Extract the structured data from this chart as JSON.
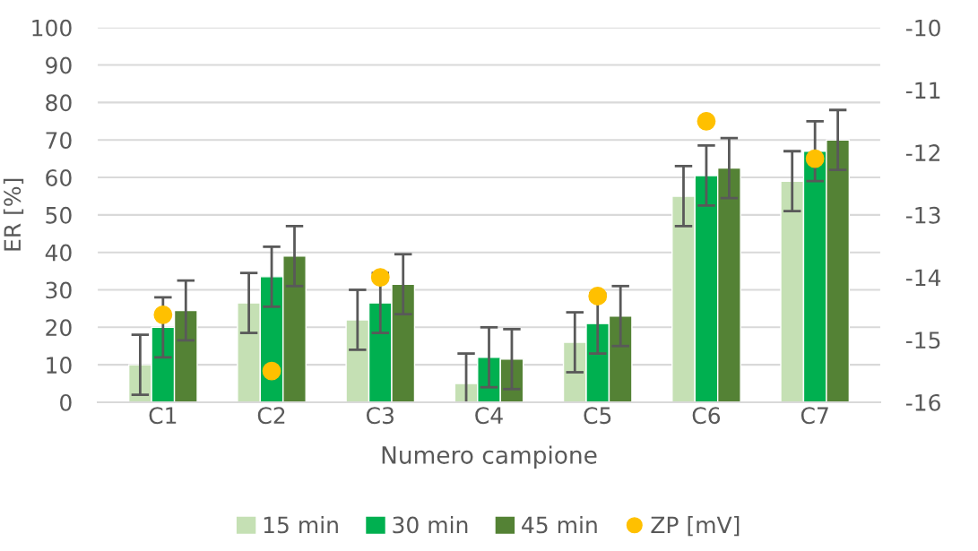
{
  "chart_data": {
    "type": "bar",
    "xlabel": "Numero campione",
    "ylabel": "ER [%]",
    "categories": [
      "C1",
      "C2",
      "C3",
      "C4",
      "C5",
      "C6",
      "C7"
    ],
    "series": [
      {
        "name": "15 min",
        "color": "#c5e0b4",
        "values": [
          10,
          26.5,
          22,
          5,
          16,
          55,
          59
        ],
        "errors": [
          8,
          8,
          8,
          8,
          8,
          8,
          8
        ]
      },
      {
        "name": "30 min",
        "color": "#00b050",
        "values": [
          20,
          33.5,
          26.5,
          12,
          21,
          60.5,
          67
        ],
        "errors": [
          8,
          8,
          8,
          8,
          8,
          8,
          8
        ]
      },
      {
        "name": "45 min",
        "color": "#548235",
        "values": [
          24.5,
          39,
          31.5,
          11.5,
          23,
          62.5,
          70
        ],
        "errors": [
          8,
          8,
          8,
          8,
          8,
          8,
          8
        ]
      },
      {
        "name": "ZP [mV]",
        "type": "scatter",
        "axis": "y2",
        "marker": "circle",
        "color": "#ffc000",
        "values": [
          -14.6,
          -15.5,
          -14.0,
          null,
          -14.3,
          -11.5,
          -12.1
        ]
      }
    ],
    "ylim": [
      0,
      100
    ],
    "yticks": [
      0,
      10,
      20,
      30,
      40,
      50,
      60,
      70,
      80,
      90,
      100
    ],
    "y2lim": [
      -16,
      -10
    ],
    "y2ticks": [
      -16,
      -15,
      -14,
      -13,
      -12,
      -11,
      -10
    ],
    "grid": "y",
    "legend": "bottom"
  }
}
